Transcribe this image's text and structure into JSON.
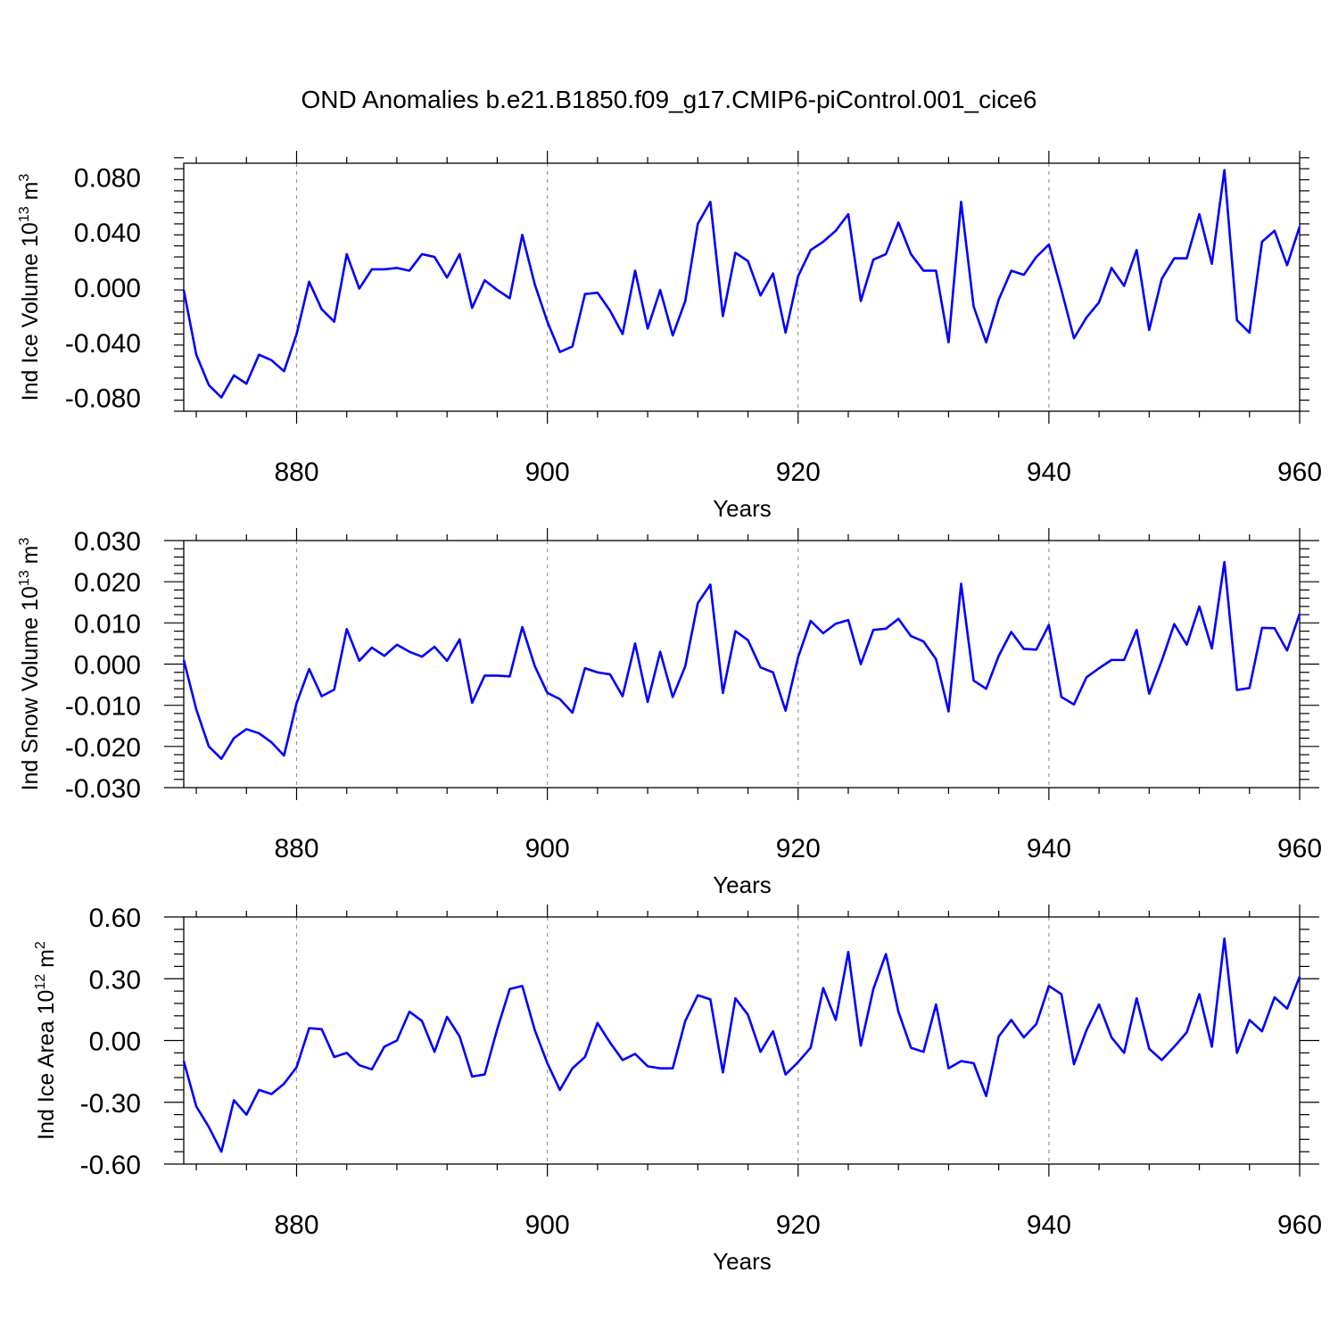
{
  "figure": {
    "title": "OND Anomalies b.e21.B1850.f09_g17.CMIP6-piControl.001_cice6"
  },
  "chart_data": [
    {
      "type": "line",
      "ylabel": {
        "main": "Ind Ice Volume 10",
        "exp": "13",
        "unit": " m",
        "unit_exp": "3"
      },
      "xlabel": "Years",
      "xlim": [
        871,
        960
      ],
      "ylim": [
        -0.09,
        0.09
      ],
      "xticks": [
        880,
        900,
        920,
        940,
        960
      ],
      "yticks": [
        -0.08,
        -0.04,
        0.0,
        0.04,
        0.08
      ],
      "ytick_labels": [
        "-0.080",
        "-0.040",
        "0.000",
        "0.040",
        "0.080"
      ],
      "grid": "dashed vertical at major x ticks",
      "series_color": "#0000ff",
      "x_start": 871,
      "values": [
        -0.002,
        -0.049,
        -0.071,
        -0.08,
        -0.064,
        -0.07,
        -0.049,
        -0.053,
        -0.061,
        -0.034,
        0.004,
        -0.016,
        -0.025,
        0.024,
        -0.001,
        0.013,
        0.013,
        0.014,
        0.012,
        0.024,
        0.022,
        0.007,
        0.024,
        -0.015,
        0.005,
        -0.002,
        -0.008,
        0.038,
        0.002,
        -0.025,
        -0.047,
        -0.043,
        -0.005,
        -0.004,
        -0.017,
        -0.034,
        0.012,
        -0.03,
        -0.002,
        -0.035,
        -0.01,
        0.046,
        0.062,
        -0.021,
        0.025,
        0.019,
        -0.006,
        0.01,
        -0.033,
        0.008,
        0.027,
        0.033,
        0.041,
        0.053,
        -0.01,
        0.02,
        0.024,
        0.047,
        0.024,
        0.012,
        0.012,
        -0.04,
        0.062,
        -0.014,
        -0.04,
        -0.009,
        0.012,
        0.009,
        0.022,
        0.031,
        -0.002,
        -0.037,
        -0.022,
        -0.011,
        0.014,
        0.001,
        0.027,
        -0.031,
        0.006,
        0.021,
        0.021,
        0.053,
        0.017,
        0.085,
        -0.024,
        -0.033,
        0.033,
        0.041,
        0.016,
        0.044
      ]
    },
    {
      "type": "line",
      "ylabel": {
        "main": "Ind Snow Volume 10",
        "exp": "13",
        "unit": " m",
        "unit_exp": "3"
      },
      "xlabel": "Years",
      "xlim": [
        871,
        960
      ],
      "ylim": [
        -0.03,
        0.03
      ],
      "xticks": [
        880,
        900,
        920,
        940,
        960
      ],
      "yticks": [
        -0.03,
        -0.02,
        -0.01,
        0.0,
        0.01,
        0.02,
        0.03
      ],
      "ytick_labels": [
        "-0.030",
        "-0.020",
        "-0.010",
        "0.000",
        "0.010",
        "0.020",
        "0.030"
      ],
      "grid": "dashed vertical at major x ticks",
      "series_color": "#0000ff",
      "x_start": 871,
      "values": [
        0.001,
        -0.011,
        -0.02,
        -0.023,
        -0.018,
        -0.0158,
        -0.0168,
        -0.019,
        -0.0222,
        -0.0095,
        -0.0012,
        -0.0078,
        -0.0062,
        0.0085,
        0.0008,
        0.004,
        0.002,
        0.0047,
        0.003,
        0.0018,
        0.0042,
        0.0008,
        0.006,
        -0.0094,
        -0.0028,
        -0.0028,
        -0.003,
        0.009,
        -0.0005,
        -0.007,
        -0.0085,
        -0.0118,
        -0.001,
        -0.002,
        -0.0025,
        -0.0078,
        0.005,
        -0.0092,
        0.003,
        -0.008,
        -0.0005,
        0.0148,
        0.0193,
        -0.007,
        0.008,
        0.0058,
        -0.0008,
        -0.002,
        -0.0113,
        0.0017,
        0.0105,
        0.0075,
        0.0098,
        0.0107,
        0.0,
        0.0083,
        0.0086,
        0.011,
        0.0068,
        0.0055,
        0.0012,
        -0.0115,
        0.0195,
        -0.004,
        -0.006,
        0.002,
        0.0078,
        0.0037,
        0.0035,
        0.0095,
        -0.008,
        -0.0098,
        -0.0032,
        -0.001,
        0.001,
        0.001,
        0.0083,
        -0.0072,
        0.0008,
        0.0097,
        0.0047,
        0.014,
        0.0038,
        0.0248,
        -0.0063,
        -0.0058,
        0.0088,
        0.0087,
        0.0033,
        0.0122
      ]
    },
    {
      "type": "line",
      "ylabel": {
        "main": "Ind Ice Area 10",
        "exp": "12",
        "unit": " m",
        "unit_exp": "2"
      },
      "xlabel": "Years",
      "xlim": [
        871,
        960
      ],
      "ylim": [
        -0.6,
        0.6
      ],
      "xticks": [
        880,
        900,
        920,
        940,
        960
      ],
      "yticks": [
        -0.6,
        -0.3,
        0.0,
        0.3,
        0.6
      ],
      "ytick_labels": [
        "-0.60",
        "-0.30",
        "0.00",
        "0.30",
        "0.60"
      ],
      "grid": "dashed vertical at major x ticks",
      "series_color": "#0000ff",
      "x_start": 871,
      "values": [
        -0.1,
        -0.32,
        -0.42,
        -0.54,
        -0.29,
        -0.36,
        -0.24,
        -0.26,
        -0.21,
        -0.13,
        0.06,
        0.055,
        -0.08,
        -0.06,
        -0.12,
        -0.14,
        -0.03,
        0.0,
        0.14,
        0.095,
        -0.055,
        0.115,
        0.02,
        -0.175,
        -0.165,
        0.055,
        0.25,
        0.265,
        0.05,
        -0.11,
        -0.24,
        -0.135,
        -0.08,
        0.085,
        -0.01,
        -0.095,
        -0.065,
        -0.125,
        -0.135,
        -0.135,
        0.095,
        0.22,
        0.2,
        -0.155,
        0.205,
        0.125,
        -0.055,
        0.045,
        -0.165,
        -0.105,
        -0.035,
        0.255,
        0.1,
        0.43,
        -0.025,
        0.25,
        0.42,
        0.14,
        -0.035,
        -0.055,
        0.175,
        -0.135,
        -0.1,
        -0.11,
        -0.27,
        0.02,
        0.1,
        0.015,
        0.08,
        0.265,
        0.225,
        -0.115,
        0.05,
        0.175,
        0.015,
        -0.06,
        0.205,
        -0.04,
        -0.095,
        -0.03,
        0.04,
        0.225,
        -0.03,
        0.495,
        -0.06,
        0.1,
        0.045,
        0.21,
        0.155,
        0.31
      ]
    }
  ]
}
